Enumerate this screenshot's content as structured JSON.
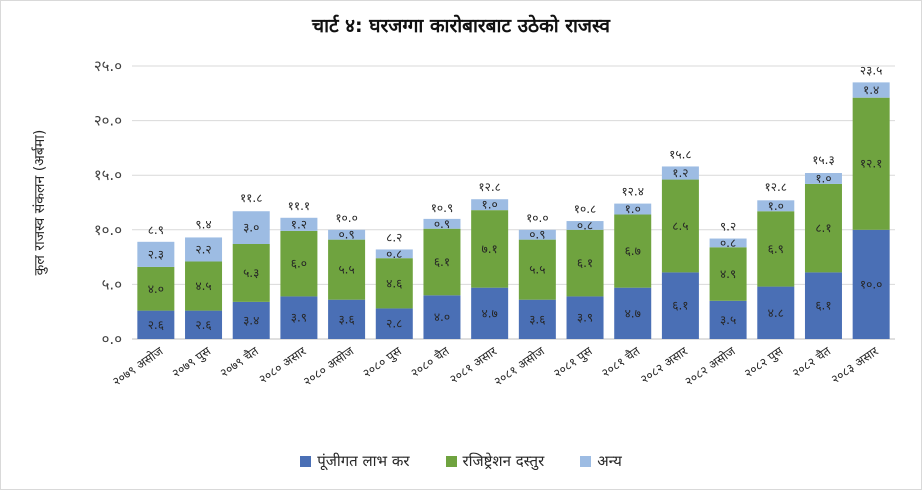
{
  "title": "चार्ट ४: घरजग्गा कारोबारबाट उठेको राजस्व",
  "colors": {
    "series0": "#4a6fb5",
    "series1": "#6fa33f",
    "series2": "#9dbce3"
  },
  "chart_data": {
    "type": "bar",
    "stacked": true,
    "ylabel": "कुल राजस्व संकलन (अर्बमा)",
    "ylim": [
      0,
      25
    ],
    "yticks": [
      "०.०",
      "५.०",
      "१०.०",
      "१५.०",
      "२०.०",
      "२५.०"
    ],
    "grid": true,
    "legend_position": "bottom",
    "categories": [
      "२०७९ असोज",
      "२०७९ पुस",
      "२०७९ चैत",
      "२०८० असार",
      "२०८० असोज",
      "२०८० पुस",
      "२०८० चैत",
      "२०८१ असार",
      "२०८१ असोज",
      "२०८१ पुस",
      "२०८१ चैत",
      "२०८२ असार",
      "२०८२ असोज",
      "२०८२ पुस",
      "२०८२ चैत",
      "२०८३ असार"
    ],
    "series": [
      {
        "name": "पूंजीगत लाभ कर",
        "values": [
          2.6,
          2.6,
          3.4,
          3.9,
          3.6,
          2.8,
          4.0,
          4.7,
          3.6,
          3.9,
          4.7,
          6.1,
          3.5,
          4.8,
          6.1,
          10.0
        ],
        "labels": [
          "२.६",
          "२.६",
          "३.४",
          "३.९",
          "३.६",
          "२.८",
          "४.०",
          "४.७",
          "३.६",
          "३.९",
          "४.७",
          "६.१",
          "३.५",
          "४.८",
          "६.१",
          "१०.०"
        ]
      },
      {
        "name": "रजिष्ट्रेशन दस्तुर",
        "values": [
          4.0,
          4.5,
          5.3,
          6.0,
          5.5,
          4.6,
          6.1,
          7.1,
          5.5,
          6.1,
          6.7,
          8.5,
          4.9,
          6.9,
          8.1,
          12.1
        ],
        "labels": [
          "४.०",
          "४.५",
          "५.३",
          "६.०",
          "५.५",
          "४.६",
          "६.१",
          "७.१",
          "५.५",
          "६.१",
          "६.७",
          "८.५",
          "४.९",
          "६.९",
          "८.१",
          "१२.१"
        ]
      },
      {
        "name": "अन्य",
        "values": [
          2.3,
          2.2,
          3.0,
          1.2,
          0.9,
          0.8,
          0.9,
          1.0,
          0.9,
          0.8,
          1.0,
          1.2,
          0.8,
          1.0,
          1.0,
          1.4
        ],
        "labels": [
          "२.३",
          "२.२",
          "३.०",
          "१.२",
          "०.९",
          "०.८",
          "०.९",
          "१.०",
          "०.९",
          "०.८",
          "१.०",
          "१.२",
          "०.८",
          "१.०",
          "१.०",
          "१.४"
        ]
      }
    ],
    "totals": [
      8.9,
      9.4,
      11.8,
      11.1,
      10.0,
      8.2,
      10.9,
      12.8,
      10.0,
      10.8,
      12.4,
      15.8,
      9.2,
      12.8,
      15.3,
      23.5
    ],
    "total_labels": [
      "८.९",
      "९.४",
      "११.८",
      "११.१",
      "१०.०",
      "८.२",
      "१०.९",
      "१२.८",
      "१०.०",
      "१०.८",
      "१२.४",
      "१५.८",
      "९.२",
      "१२.८",
      "१५.३",
      "२३.५"
    ]
  }
}
